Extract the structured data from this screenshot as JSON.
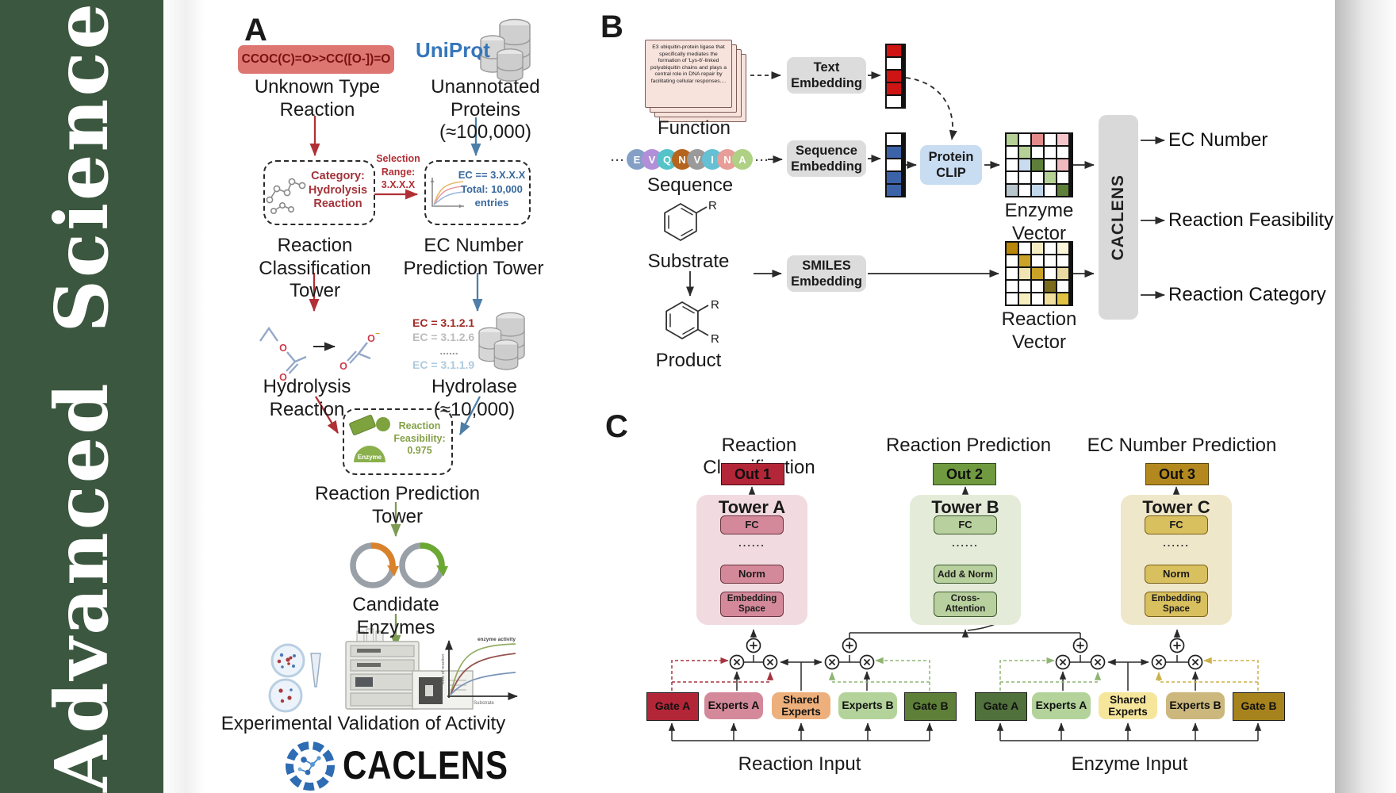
{
  "journal": {
    "name": "Advanced Science",
    "accent_color": "#3c573f"
  },
  "panelA": {
    "label": "A",
    "smiles": "CCOC(C)=O>>CC([O-])=O",
    "unknown_type_label": "Unknown Type\nReaction",
    "uniprot_label": "UniProt",
    "unannotated_label": "Unannotated\nProteins (≈100,000)",
    "selection_label": "Selection\nRange:\n3.X.X.X",
    "category_box": "Category:\nHydrolysis\nReaction",
    "ec_range_box": "EC == 3.X.X.X\nTotal: 10,000\nentries",
    "classification_tower_label": "Reaction\nClassification Tower",
    "ec_tower_label": "EC Number\nPrediction Tower",
    "hydrolysis_label": "Hydrolysis Reaction",
    "ec_list": [
      "EC = 3.1.2.1",
      "EC = 3.1.2.6",
      "......",
      "EC = 3.1.1.9"
    ],
    "hydrolase_label": "Hydrolase (≈10,000)",
    "enzyme_badge": "Enzyme",
    "feasibility_box": "Reaction\nFeasibility:\n0.975",
    "prediction_tower_label": "Reaction Prediction Tower",
    "candidate_label": "Candidate Enzymes",
    "validation_label": "Experimental Validation of Activity",
    "activity_plot": {
      "annotation": "enzyme activity",
      "ylabel": "Rate of reaction",
      "xlabel": "Substrate"
    },
    "brand": "CACLENS"
  },
  "panelB": {
    "label": "B",
    "function_card_text": "E3 ubiquitin-protein ligase that specifically mediates the formation of 'Lys-6'-linked polyubiquitin chains and plays a central role in DNA repair by facilitating cellular responses....",
    "function_label": "Function",
    "sequence_dots": "···",
    "sequence_letters": [
      {
        "letter": "E",
        "color": "#84a0c6"
      },
      {
        "letter": "V",
        "color": "#b18fd9"
      },
      {
        "letter": "Q",
        "color": "#55c4c9"
      },
      {
        "letter": "N",
        "color": "#b5651d"
      },
      {
        "letter": "V",
        "color": "#9a9a9a"
      },
      {
        "letter": "I",
        "color": "#64c0d2"
      },
      {
        "letter": "N",
        "color": "#e89e98"
      },
      {
        "letter": "A",
        "color": "#aed184"
      }
    ],
    "sequence_label": "Sequence",
    "substrate_label": "Substrate",
    "product_label": "Product",
    "r_label": "R",
    "text_embedding_label": "Text\nEmbedding",
    "sequence_embedding_label": "Sequence\nEmbedding",
    "smiles_embedding_label": "SMILES\nEmbedding",
    "protein_clip_label": "Protein\nCLIP",
    "text_vector_cells": [
      "#cf1414",
      "#ffffff",
      "#cf1414",
      "#cf1414",
      "#ffffff"
    ],
    "sequence_vector_cells": [
      "#ffffff",
      "#3c63a8",
      "#ffffff",
      "#3c63a8",
      "#3c63a8"
    ],
    "enzyme_matrix_label": "Enzyme Vector",
    "reaction_matrix_label": "Reaction Vector",
    "enzyme_matrix_cells": [
      [
        "#b5d195",
        "#ffffff",
        "#e38a8a",
        "#ffffff",
        "#f4c6cb"
      ],
      [
        "#ffffff",
        "#b5d195",
        "#ffffff",
        "#ffffff",
        "#ffffff"
      ],
      [
        "#ffffff",
        "#c9dbee",
        "#5e7f39",
        "#ffffff",
        "#f0b9be"
      ],
      [
        "#ffffff",
        "#ffffff",
        "#ffffff",
        "#b5d195",
        "#ffffff"
      ],
      [
        "#b9c5cd",
        "#ffffff",
        "#c3d7eb",
        "#ffffff",
        "#5e7f39"
      ]
    ],
    "reaction_mat_cells": [
      [
        "#b8860b",
        "#ffffff",
        "#f5ecc2",
        "#ffffff",
        "#fbf5da"
      ],
      [
        "#ffffff",
        "#c9a227",
        "#ffffff",
        "#ffffff",
        "#ffffff"
      ],
      [
        "#ffffff",
        "#f0e4b2",
        "#c9a227",
        "#ffffff",
        "#ead9a2"
      ],
      [
        "#ffffff",
        "#ffffff",
        "#ffffff",
        "#7a6a1c",
        "#ffffff"
      ],
      [
        "#ffffff",
        "#f5eebe",
        "#ffffff",
        "#f0e09c",
        "#e2c243"
      ]
    ],
    "caclens_bar_label": "CACLENS",
    "outputs": [
      "EC Number",
      "Reaction Feasibility",
      "Reaction Category"
    ]
  },
  "panelC": {
    "label": "C",
    "towers": [
      {
        "title": "Reaction Classification",
        "out": "Out 1",
        "name": "Tower A",
        "l1": "FC",
        "dots": "......",
        "l2": "Norm",
        "l3": "Embedding\nSpace",
        "accent": "#b32638"
      },
      {
        "title": "Reaction Prediction",
        "out": "Out 2",
        "name": "Tower B",
        "l1": "FC",
        "dots": "......",
        "l2": "Add & Norm",
        "l3": "Cross-\nAttention",
        "accent": "#6f9a3f"
      },
      {
        "title": "EC Number Prediction",
        "out": "Out 3",
        "name": "Tower C",
        "l1": "FC",
        "dots": "......",
        "l2": "Norm",
        "l3": "Embedding\nSpace",
        "accent": "#b3891f"
      }
    ],
    "groups": [
      {
        "label": "Reaction Input",
        "boxes": [
          "Gate A",
          "Experts A",
          "Shared\nExperts",
          "Experts B",
          "Gate B"
        ]
      },
      {
        "label": "Enzyme Input",
        "boxes": [
          "Gate A",
          "Experts A",
          "Shared\nExperts",
          "Experts B",
          "Gate B"
        ]
      }
    ]
  }
}
